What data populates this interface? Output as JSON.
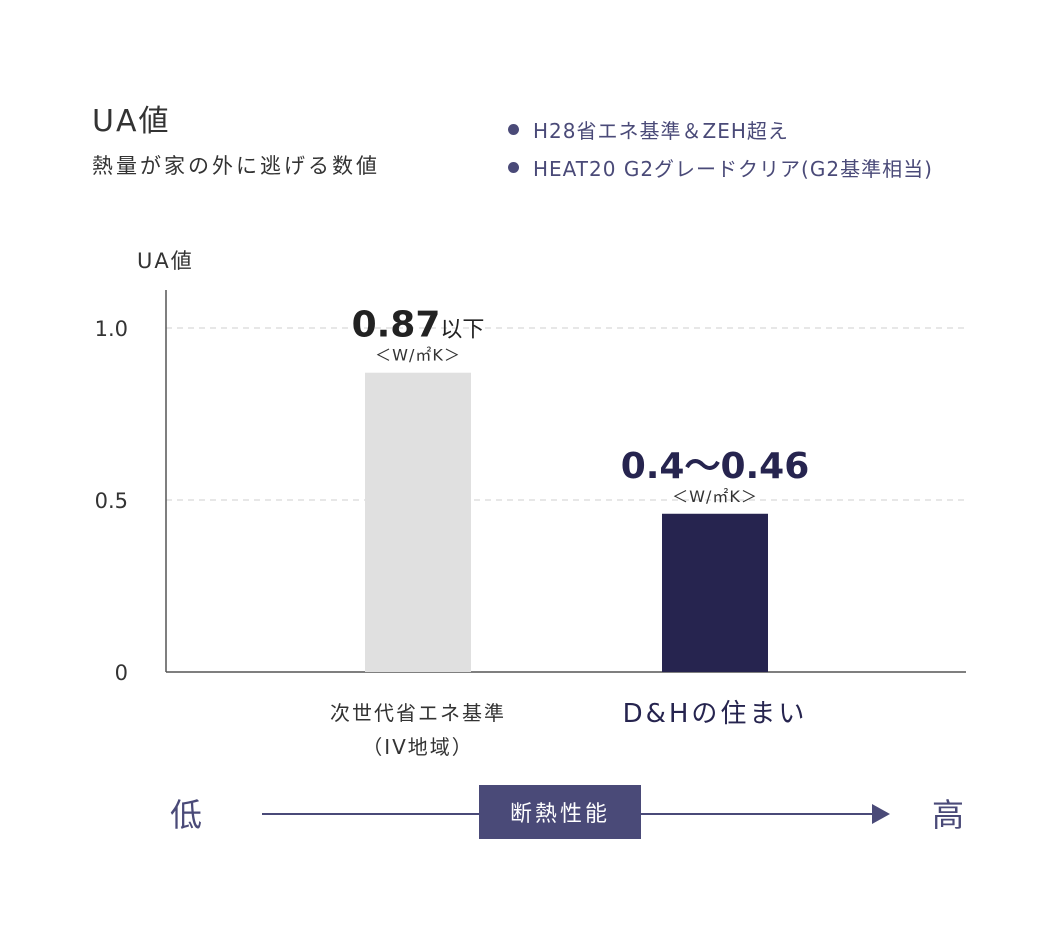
{
  "header": {
    "title": "UA値",
    "subtitle": "熱量が家の外に逃げる数値"
  },
  "legend": [
    "H28省エネ基準＆ZEH超え",
    "HEAT20 G2グレードクリア(G2基準相当)"
  ],
  "chart_data": {
    "type": "bar",
    "title": "",
    "ylabel": "UA値",
    "xlabel": "",
    "ylim": [
      0,
      1.0
    ],
    "yticks": [
      {
        "value": 1.0,
        "label": "1.0"
      },
      {
        "value": 0.5,
        "label": "0.5"
      },
      {
        "value": 0,
        "label": "0"
      }
    ],
    "grid": "horizontal dashed",
    "categories": [
      "次世代省エネ基準（IV地域）",
      "D&Hの住まい"
    ],
    "category_lines": [
      [
        "次世代省エネ基準",
        "（IV地域）"
      ],
      [
        "D&Hの住まい"
      ]
    ],
    "values": [
      0.87,
      0.46
    ],
    "bar_colors": [
      "#e0e0e0",
      "#26244f"
    ],
    "data_labels": [
      {
        "value_text": "0.87",
        "suffix": "以下",
        "unit": "＜W/㎡K＞"
      },
      {
        "value_text": "0.4〜0.46",
        "suffix": "",
        "unit": "＜W/㎡K＞"
      }
    ]
  },
  "scale": {
    "low": "低",
    "label": "断熱性能",
    "high": "高"
  },
  "colors": {
    "accent": "#4a4a78",
    "dark_bar": "#26244f",
    "light_bar": "#e0e0e0",
    "text": "#333333"
  }
}
